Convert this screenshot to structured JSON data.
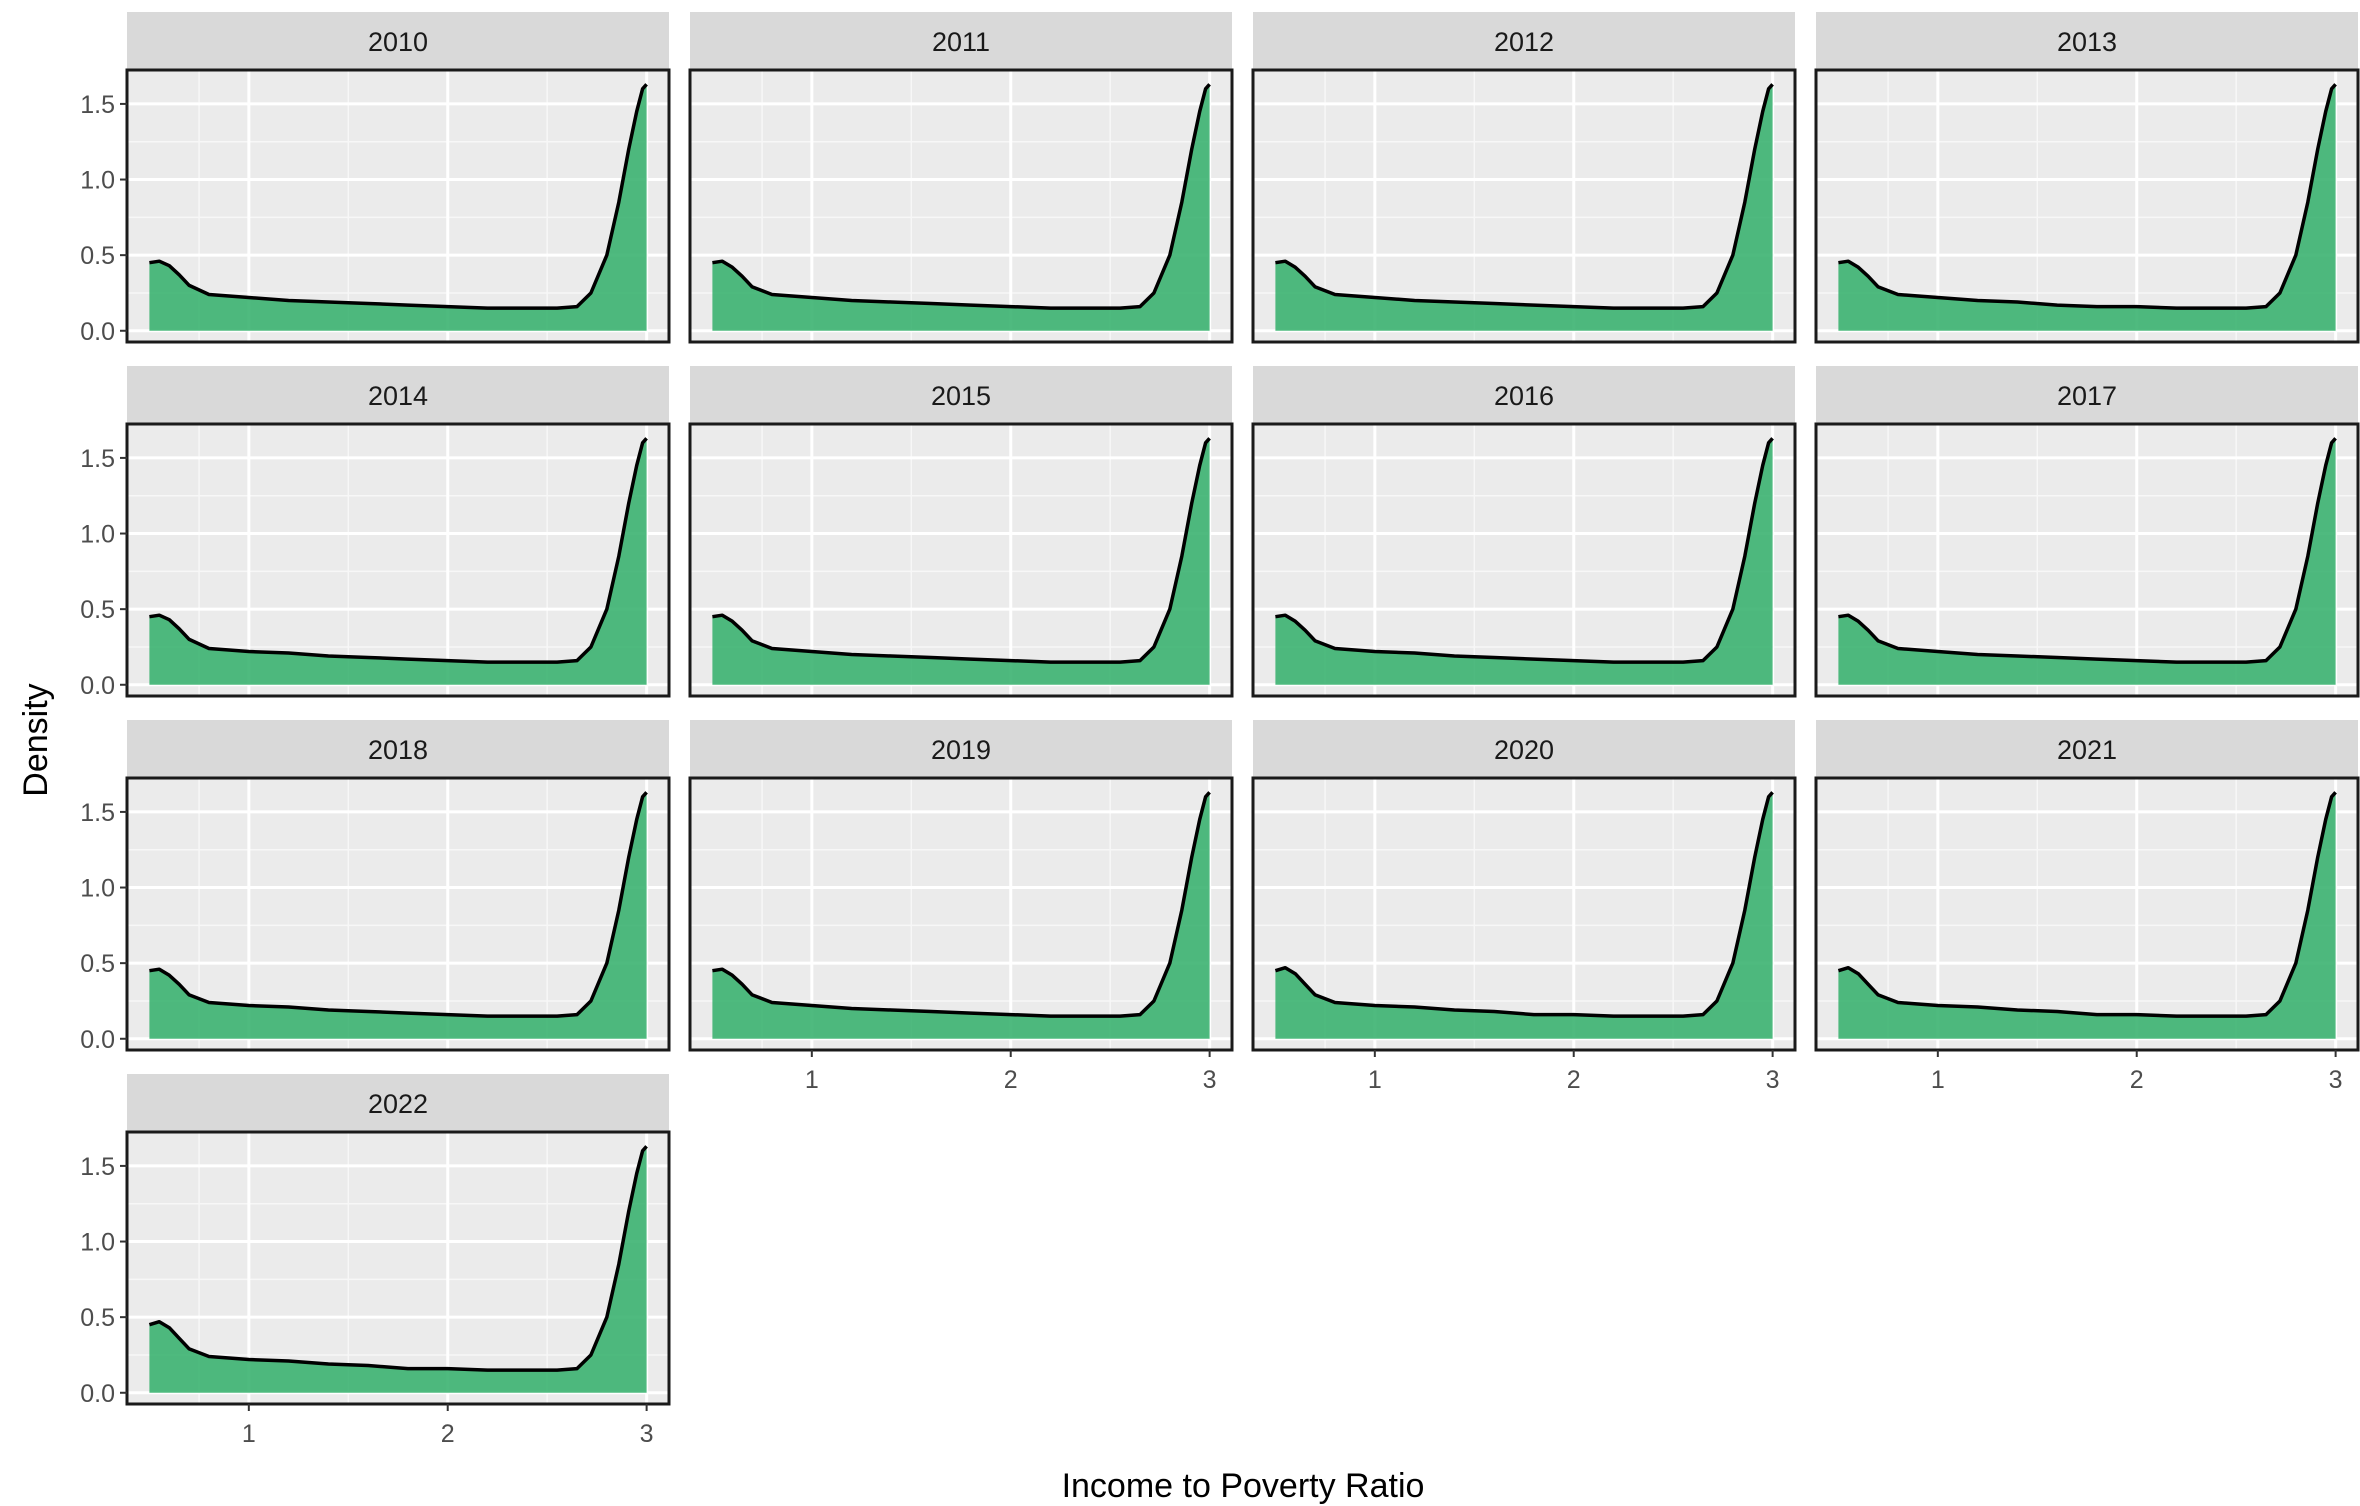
{
  "chart_data": {
    "type": "area",
    "facet_by": "year",
    "layout": "facet-wrap, 4 columns",
    "xlabel": "Income to Poverty Ratio",
    "ylabel": "Density",
    "xlim": [
      0.5,
      3.0
    ],
    "ylim": [
      0,
      1.65
    ],
    "x_ticks": [
      1,
      2,
      3
    ],
    "y_ticks": [
      0.0,
      0.5,
      1.0,
      1.5
    ],
    "y_tick_labels": [
      "0.0",
      "0.5",
      "1.0",
      "1.5"
    ],
    "grid": true,
    "fill_color": "#3cb371",
    "line_color": "#000000",
    "panel_background": "#ebebeb",
    "strip_background": "#d9d9d9",
    "x": [
      0.5,
      0.55,
      0.6,
      0.65,
      0.7,
      0.8,
      0.9,
      1.0,
      1.2,
      1.4,
      1.6,
      1.8,
      2.0,
      2.2,
      2.4,
      2.55,
      2.65,
      2.72,
      2.8,
      2.86,
      2.91,
      2.95,
      2.98,
      3.0
    ],
    "facets": [
      {
        "year": "2010",
        "values": [
          0.45,
          0.46,
          0.43,
          0.37,
          0.3,
          0.24,
          0.23,
          0.22,
          0.2,
          0.19,
          0.18,
          0.17,
          0.16,
          0.15,
          0.15,
          0.15,
          0.16,
          0.25,
          0.5,
          0.85,
          1.2,
          1.45,
          1.6,
          1.63
        ]
      },
      {
        "year": "2011",
        "values": [
          0.45,
          0.46,
          0.42,
          0.36,
          0.29,
          0.24,
          0.23,
          0.22,
          0.2,
          0.19,
          0.18,
          0.17,
          0.16,
          0.15,
          0.15,
          0.15,
          0.16,
          0.25,
          0.5,
          0.85,
          1.2,
          1.45,
          1.6,
          1.63
        ]
      },
      {
        "year": "2012",
        "values": [
          0.45,
          0.46,
          0.42,
          0.36,
          0.29,
          0.24,
          0.23,
          0.22,
          0.2,
          0.19,
          0.18,
          0.17,
          0.16,
          0.15,
          0.15,
          0.15,
          0.16,
          0.25,
          0.5,
          0.85,
          1.2,
          1.45,
          1.6,
          1.63
        ]
      },
      {
        "year": "2013",
        "values": [
          0.45,
          0.46,
          0.42,
          0.36,
          0.29,
          0.24,
          0.23,
          0.22,
          0.2,
          0.19,
          0.17,
          0.16,
          0.16,
          0.15,
          0.15,
          0.15,
          0.16,
          0.25,
          0.5,
          0.85,
          1.2,
          1.45,
          1.6,
          1.63
        ]
      },
      {
        "year": "2014",
        "values": [
          0.45,
          0.46,
          0.43,
          0.37,
          0.3,
          0.24,
          0.23,
          0.22,
          0.21,
          0.19,
          0.18,
          0.17,
          0.16,
          0.15,
          0.15,
          0.15,
          0.16,
          0.25,
          0.5,
          0.85,
          1.2,
          1.45,
          1.6,
          1.63
        ]
      },
      {
        "year": "2015",
        "values": [
          0.45,
          0.46,
          0.42,
          0.36,
          0.29,
          0.24,
          0.23,
          0.22,
          0.2,
          0.19,
          0.18,
          0.17,
          0.16,
          0.15,
          0.15,
          0.15,
          0.16,
          0.25,
          0.5,
          0.85,
          1.2,
          1.45,
          1.6,
          1.63
        ]
      },
      {
        "year": "2016",
        "values": [
          0.45,
          0.46,
          0.42,
          0.36,
          0.29,
          0.24,
          0.23,
          0.22,
          0.21,
          0.19,
          0.18,
          0.17,
          0.16,
          0.15,
          0.15,
          0.15,
          0.16,
          0.25,
          0.5,
          0.85,
          1.2,
          1.45,
          1.6,
          1.63
        ]
      },
      {
        "year": "2017",
        "values": [
          0.45,
          0.46,
          0.42,
          0.36,
          0.29,
          0.24,
          0.23,
          0.22,
          0.2,
          0.19,
          0.18,
          0.17,
          0.16,
          0.15,
          0.15,
          0.15,
          0.16,
          0.25,
          0.5,
          0.85,
          1.2,
          1.45,
          1.6,
          1.63
        ]
      },
      {
        "year": "2018",
        "values": [
          0.45,
          0.46,
          0.42,
          0.36,
          0.29,
          0.24,
          0.23,
          0.22,
          0.21,
          0.19,
          0.18,
          0.17,
          0.16,
          0.15,
          0.15,
          0.15,
          0.16,
          0.25,
          0.5,
          0.85,
          1.2,
          1.45,
          1.6,
          1.63
        ]
      },
      {
        "year": "2019",
        "values": [
          0.45,
          0.46,
          0.42,
          0.36,
          0.29,
          0.24,
          0.23,
          0.22,
          0.2,
          0.19,
          0.18,
          0.17,
          0.16,
          0.15,
          0.15,
          0.15,
          0.16,
          0.25,
          0.5,
          0.85,
          1.2,
          1.45,
          1.6,
          1.63
        ]
      },
      {
        "year": "2020",
        "values": [
          0.45,
          0.47,
          0.43,
          0.36,
          0.29,
          0.24,
          0.23,
          0.22,
          0.21,
          0.19,
          0.18,
          0.16,
          0.16,
          0.15,
          0.15,
          0.15,
          0.16,
          0.25,
          0.5,
          0.85,
          1.2,
          1.45,
          1.6,
          1.63
        ]
      },
      {
        "year": "2021",
        "values": [
          0.45,
          0.47,
          0.43,
          0.36,
          0.29,
          0.24,
          0.23,
          0.22,
          0.21,
          0.19,
          0.18,
          0.16,
          0.16,
          0.15,
          0.15,
          0.15,
          0.16,
          0.25,
          0.5,
          0.85,
          1.2,
          1.45,
          1.6,
          1.63
        ]
      },
      {
        "year": "2022",
        "values": [
          0.45,
          0.47,
          0.43,
          0.36,
          0.29,
          0.24,
          0.23,
          0.22,
          0.21,
          0.19,
          0.18,
          0.16,
          0.16,
          0.15,
          0.15,
          0.15,
          0.16,
          0.25,
          0.5,
          0.85,
          1.2,
          1.45,
          1.6,
          1.63
        ]
      }
    ]
  }
}
